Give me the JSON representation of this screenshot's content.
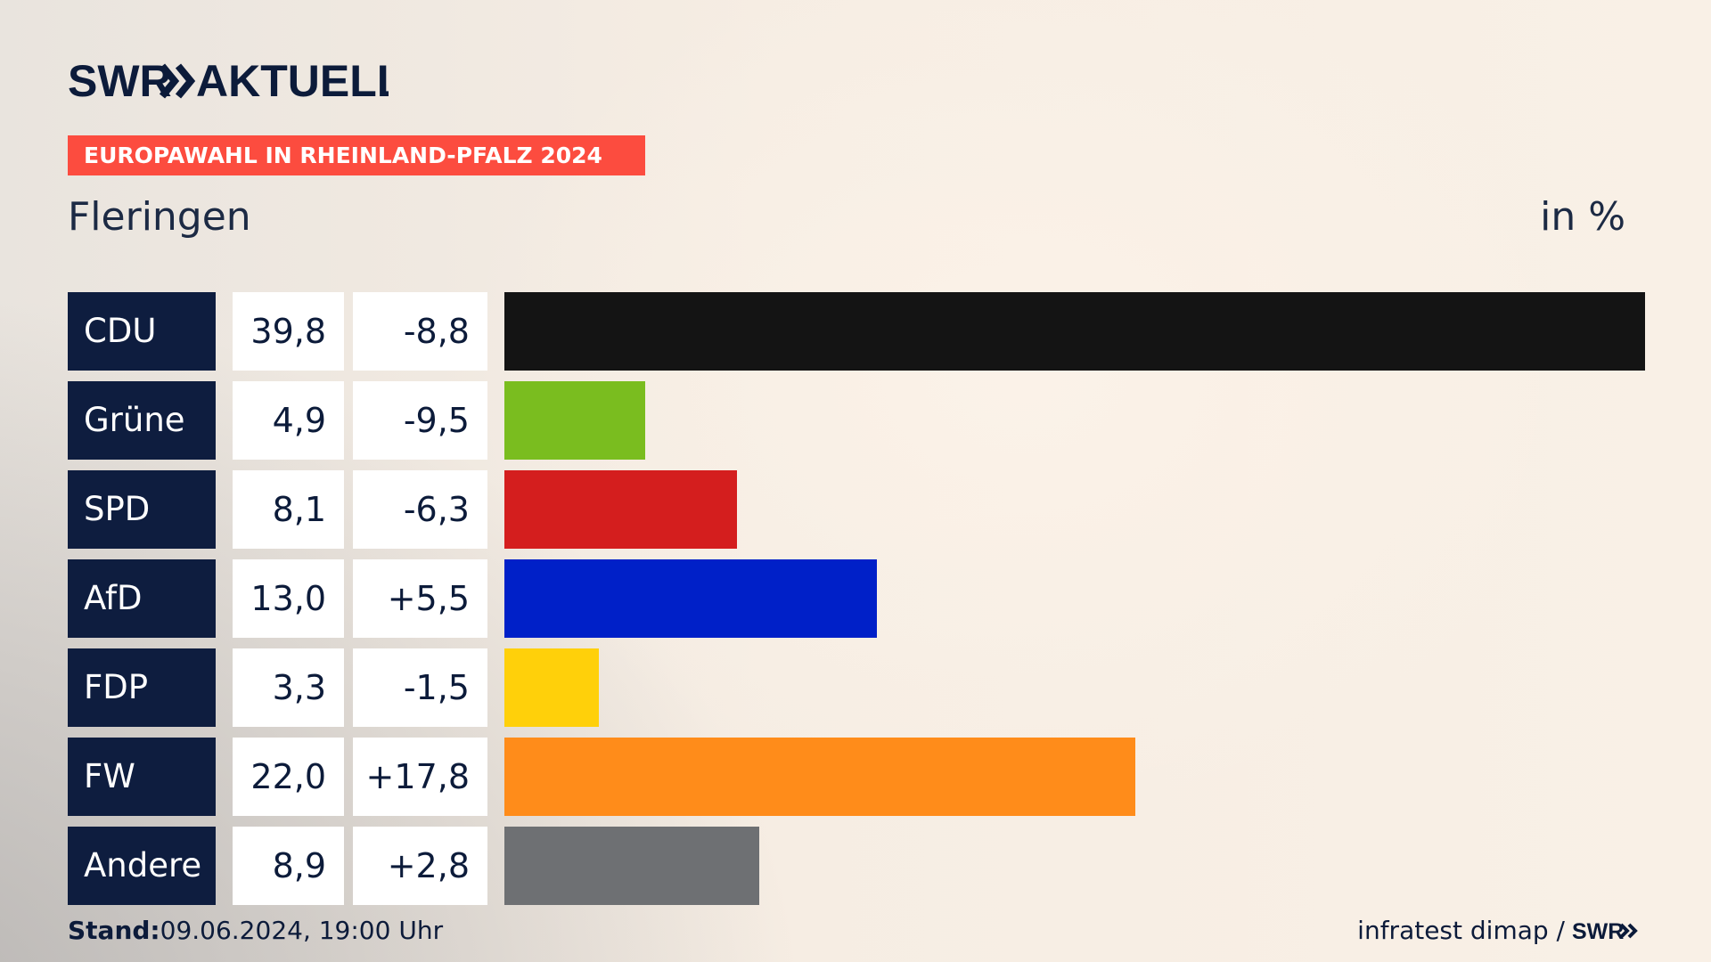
{
  "brand": {
    "logo_text": "SWR",
    "title": "AKTUELL"
  },
  "header": {
    "band_label": "EUROPAWAHL IN RHEINLAND-PFALZ 2024"
  },
  "location": "Fleringen",
  "unit_label": "in %",
  "footer": {
    "stand_label": "Stand:",
    "stand_value": "09.06.2024, 19:00 Uhr",
    "source": "infratest dimap /",
    "source_logo": "SWR"
  },
  "chart_data": {
    "type": "bar",
    "orientation": "horizontal",
    "title": "",
    "xlabel": "",
    "ylabel": "",
    "categories": [
      "CDU",
      "Grüne",
      "SPD",
      "AfD",
      "FDP",
      "FW",
      "Andere"
    ],
    "values": [
      39.8,
      4.9,
      8.1,
      13.0,
      3.3,
      22.0,
      8.9
    ],
    "value_labels": [
      "39,8",
      "4,9",
      "8,1",
      "13,0",
      "3,3",
      "22,0",
      "8,9"
    ],
    "change_labels": [
      "-8,8",
      "-9,5",
      "-6,3",
      "+5,5",
      "-1,5",
      "+17,8",
      "+2,8"
    ],
    "changes": [
      -8.8,
      -9.5,
      -6.3,
      5.5,
      -1.5,
      17.8,
      2.8
    ],
    "colors": [
      "#141414",
      "#7abd1f",
      "#d41e1e",
      "#0020c8",
      "#ffd00a",
      "#ff8c1a",
      "#6e7073"
    ],
    "xlim": [
      0,
      39.8
    ],
    "grid": false,
    "legend": "none"
  }
}
